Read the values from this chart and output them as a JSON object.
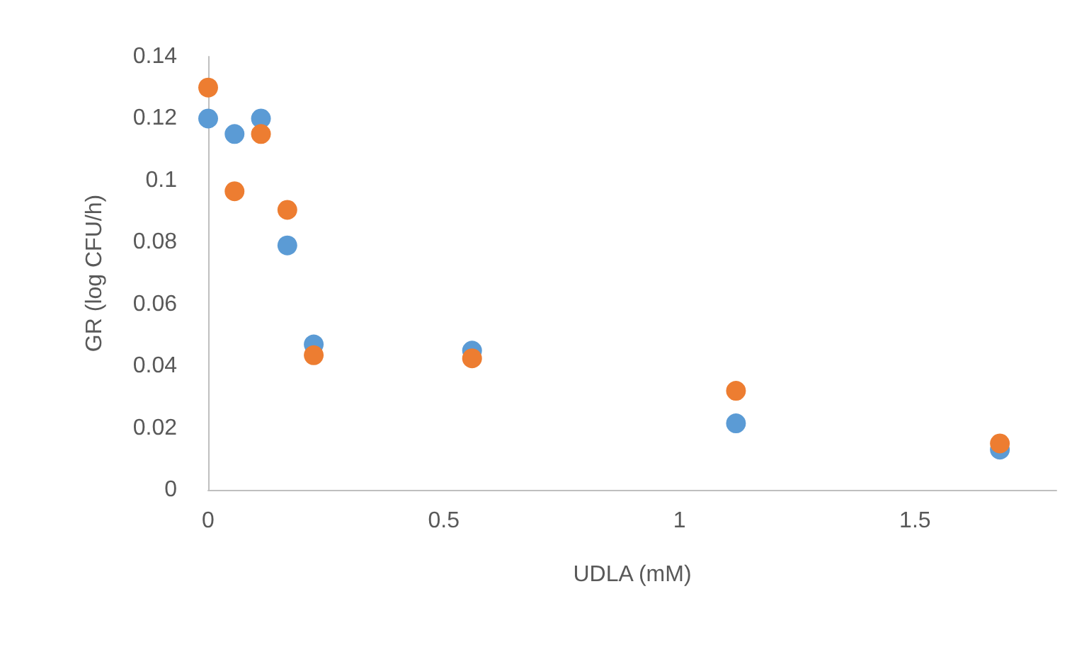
{
  "chart_data": {
    "type": "scatter",
    "xlabel": "UDLA (mM)",
    "ylabel": "GR (log CFU/h)",
    "x": [
      0,
      0.056,
      0.112,
      0.168,
      0.224,
      0.56,
      1.12,
      1.68
    ],
    "series": [
      {
        "color": "#5b9bd5",
        "values": [
          0.12,
          0.115,
          0.12,
          0.079,
          0.047,
          0.045,
          0.0215,
          0.013
        ]
      },
      {
        "color": "#ed7d31",
        "values": [
          0.13,
          0.0965,
          0.115,
          0.0905,
          0.0435,
          0.0425,
          0.032,
          0.015
        ]
      }
    ],
    "xlim": [
      0,
      1.8
    ],
    "xticks": [
      0,
      0.5,
      1,
      1.5
    ],
    "ylim": [
      0,
      0.14
    ],
    "yticks": [
      0,
      0.02,
      0.04,
      0.06,
      0.08,
      0.1,
      0.12,
      0.14
    ],
    "grid": false,
    "marker": "circle"
  }
}
